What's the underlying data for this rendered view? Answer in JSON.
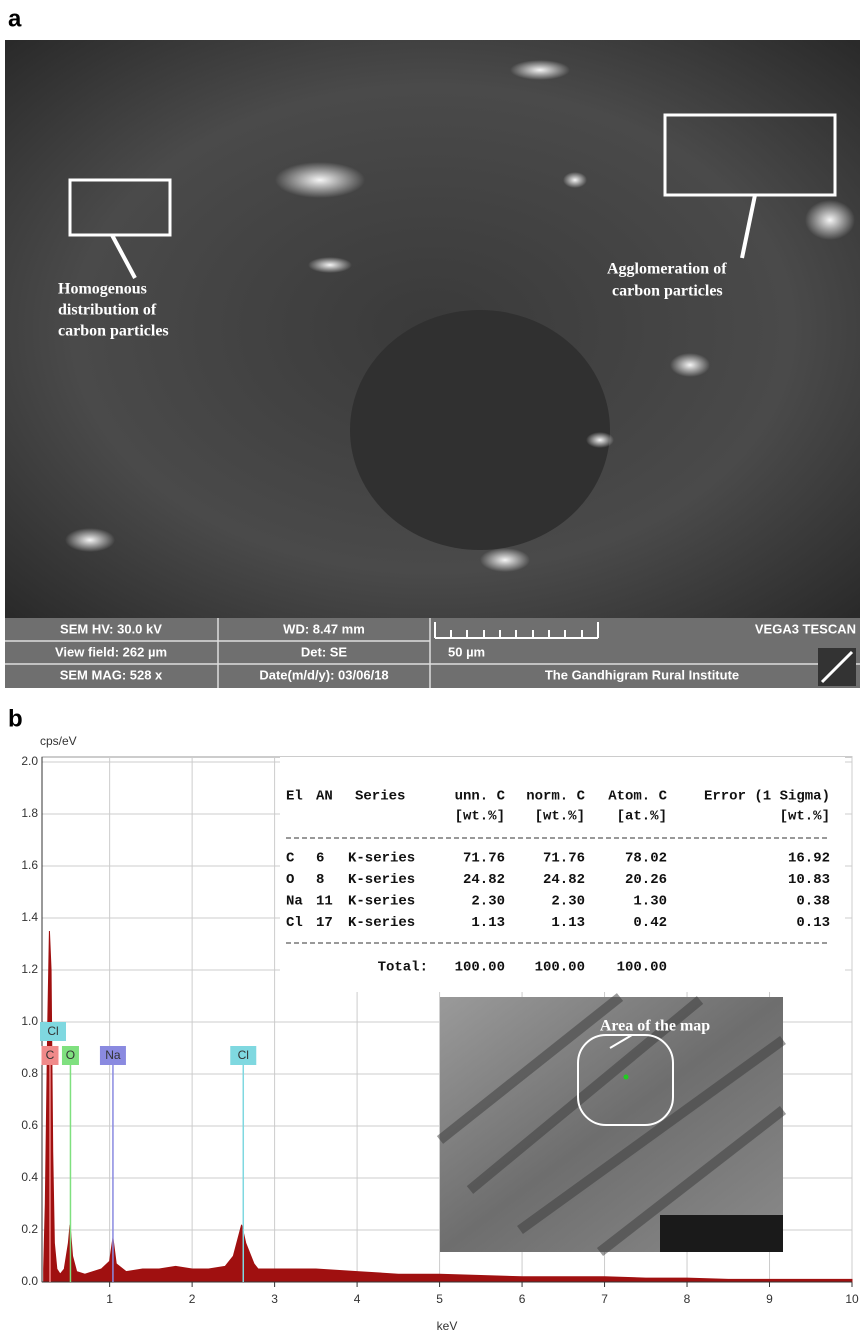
{
  "panel_a": {
    "label": "a",
    "annotations": [
      {
        "lines": [
          "Homogenous",
          "distribution of",
          "carbon particles"
        ]
      },
      {
        "lines": [
          "Agglomeration of",
          "carbon particles"
        ]
      }
    ],
    "info_bar": [
      [
        "SEM HV: 30.0 kV",
        "WD: 8.47 mm",
        "VEGA3 TESCAN"
      ],
      [
        "View field: 262 µm",
        "Det: SE",
        "50 µm"
      ],
      [
        "SEM MAG: 528 x",
        "Date(m/d/y): 03/06/18",
        "The Gandhigram Rural Institute"
      ]
    ]
  },
  "panel_b": {
    "label": "b"
  },
  "chart_data": {
    "type": "area",
    "x_label": "keV",
    "y_label": "cps/eV",
    "color": "#a01010",
    "x": [
      0.2,
      0.22,
      0.25,
      0.27,
      0.29,
      0.31,
      0.33,
      0.36,
      0.4,
      0.45,
      0.5,
      0.52,
      0.55,
      0.6,
      0.7,
      0.8,
      0.9,
      1.0,
      1.04,
      1.08,
      1.2,
      1.4,
      1.6,
      1.8,
      2.0,
      2.2,
      2.4,
      2.5,
      2.6,
      2.65,
      2.75,
      2.8,
      3.0,
      3.5,
      4.0,
      4.5,
      5.0,
      5.5,
      6.0,
      6.5,
      7.0,
      7.5,
      8.0,
      8.5,
      9.0,
      9.5,
      10.0
    ],
    "values": [
      0.05,
      0.3,
      1.0,
      1.35,
      1.2,
      0.5,
      0.15,
      0.05,
      0.03,
      0.05,
      0.15,
      0.22,
      0.1,
      0.04,
      0.03,
      0.04,
      0.05,
      0.08,
      0.17,
      0.07,
      0.04,
      0.05,
      0.05,
      0.06,
      0.05,
      0.05,
      0.06,
      0.1,
      0.22,
      0.15,
      0.07,
      0.05,
      0.05,
      0.05,
      0.04,
      0.03,
      0.03,
      0.025,
      0.02,
      0.02,
      0.02,
      0.015,
      0.015,
      0.01,
      0.01,
      0.01,
      0.01
    ],
    "xlim": [
      0.18,
      10
    ],
    "xticks": [
      1,
      2,
      3,
      4,
      5,
      6,
      7,
      8,
      9,
      10
    ],
    "ylim": [
      0,
      2
    ],
    "yticks": [
      {
        "value": 0,
        "label": "0.0"
      },
      0.2,
      0.4,
      0.6,
      0.8,
      {
        "value": 1,
        "label": "1.0"
      },
      1.2,
      1.4,
      1.6,
      1.8,
      {
        "value": 2,
        "label": "2.0"
      }
    ],
    "grid": true,
    "element_markers": [
      {
        "label": "Cl",
        "x": 0.18,
        "color": "#7fd8e0"
      },
      {
        "label": "C",
        "x": 0.277,
        "color": "#f08a8a"
      },
      {
        "label": "O",
        "x": 0.525,
        "color": "#7fe07f"
      },
      {
        "label": "Na",
        "x": 1.04,
        "color": "#8a8ae0"
      },
      {
        "label": "Cl",
        "x": 2.62,
        "color": "#7fd8e0"
      }
    ],
    "table": {
      "header": [
        "El",
        "AN",
        "Series",
        "unn. C",
        "norm. C",
        "Atom. C",
        "Error (1 Sigma)"
      ],
      "units": [
        "[wt.%]",
        "[wt.%]",
        "[at.%]",
        "[wt.%]"
      ],
      "rows": [
        [
          "C",
          "6",
          "K-series",
          "71.76",
          "71.76",
          "78.02",
          "16.92"
        ],
        [
          "O",
          "8",
          "K-series",
          "24.82",
          "24.82",
          "20.26",
          "10.83"
        ],
        [
          "Na",
          "11",
          "K-series",
          "2.30",
          "2.30",
          "1.30",
          "0.38"
        ],
        [
          "Cl",
          "17",
          "K-series",
          "1.13",
          "1.13",
          "0.42",
          "0.13"
        ]
      ],
      "total": {
        "label": "Total:",
        "values": [
          "100.00",
          "100.00",
          "100.00"
        ]
      }
    },
    "inset_label": "Area of the map"
  }
}
